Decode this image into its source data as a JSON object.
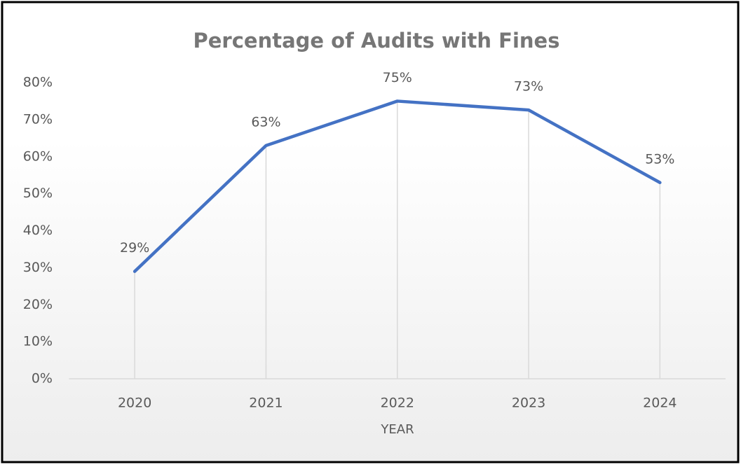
{
  "chart_data": {
    "type": "line",
    "title": "Percentage of Audits with Fines",
    "x_label": "YEAR",
    "categories": [
      "2020",
      "2021",
      "2022",
      "2023",
      "2024"
    ],
    "series": [
      {
        "name": "Percentage of Audits with Fines",
        "color": "#4472c4",
        "values": [
          29,
          63,
          75,
          72.6,
          53
        ],
        "value_labels": [
          "29%",
          "63%",
          "75%",
          "73%",
          "53%"
        ]
      }
    ],
    "ylim": [
      0,
      80
    ],
    "yticks": [
      {
        "value": 0,
        "label": "0%"
      },
      {
        "value": 10,
        "label": "10%"
      },
      {
        "value": 20,
        "label": "20%"
      },
      {
        "value": 30,
        "label": "30%"
      },
      {
        "value": 40,
        "label": "40%"
      },
      {
        "value": 50,
        "label": "50%"
      },
      {
        "value": 60,
        "label": "60%"
      },
      {
        "value": 70,
        "label": "70%"
      },
      {
        "value": 80,
        "label": "80%"
      }
    ],
    "drop_lines": true,
    "legend": false
  }
}
